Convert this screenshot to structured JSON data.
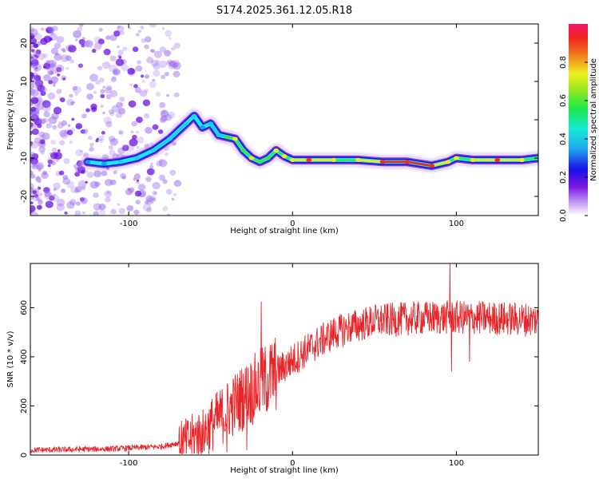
{
  "title": "S174.2025.361.12.05.R18",
  "colors": {
    "line": "#e8262a",
    "ridge_low": "#1a0fd8",
    "ridge_mid": "#18e8f0",
    "ridge_high": "#f02020",
    "noise": "#a070f0"
  },
  "chart_data": [
    {
      "type": "heatmap",
      "title": "Spectrogram",
      "xlabel": "Height of straight line (km)",
      "ylabel": "Frequency (Hz)",
      "xlim": [
        -160,
        150
      ],
      "ylim": [
        -25,
        25
      ],
      "xticks": [
        -100,
        0,
        100
      ],
      "xtick_labels": [
        "-100",
        "0",
        "100"
      ],
      "yticks": [
        -20,
        -10,
        0,
        10,
        20
      ],
      "ytick_labels": [
        "-20",
        "-10",
        "0",
        "10",
        "20"
      ],
      "ridge": [
        {
          "x": -125,
          "y": -11,
          "a": 0.2
        },
        {
          "x": -115,
          "y": -11.5,
          "a": 0.25
        },
        {
          "x": -105,
          "y": -11,
          "a": 0.3
        },
        {
          "x": -95,
          "y": -10,
          "a": 0.3
        },
        {
          "x": -85,
          "y": -8,
          "a": 0.35
        },
        {
          "x": -75,
          "y": -5,
          "a": 0.35
        },
        {
          "x": -65,
          "y": -1,
          "a": 0.35
        },
        {
          "x": -60,
          "y": 1,
          "a": 0.3
        },
        {
          "x": -55,
          "y": -2,
          "a": 0.25
        },
        {
          "x": -50,
          "y": -1,
          "a": 0.35
        },
        {
          "x": -45,
          "y": -4,
          "a": 0.35
        },
        {
          "x": -40,
          "y": -4.5,
          "a": 0.5
        },
        {
          "x": -35,
          "y": -5,
          "a": 0.55
        },
        {
          "x": -30,
          "y": -8,
          "a": 0.5
        },
        {
          "x": -25,
          "y": -10,
          "a": 0.55
        },
        {
          "x": -20,
          "y": -11,
          "a": 0.5
        },
        {
          "x": -15,
          "y": -10,
          "a": 0.5
        },
        {
          "x": -10,
          "y": -8,
          "a": 0.55
        },
        {
          "x": -5,
          "y": -9.5,
          "a": 0.55
        },
        {
          "x": 0,
          "y": -10.5,
          "a": 0.55
        },
        {
          "x": 10,
          "y": -10.5,
          "a": 0.7
        },
        {
          "x": 25,
          "y": -10.5,
          "a": 0.55
        },
        {
          "x": 40,
          "y": -10.5,
          "a": 0.6
        },
        {
          "x": 55,
          "y": -11,
          "a": 0.75
        },
        {
          "x": 70,
          "y": -11,
          "a": 0.7
        },
        {
          "x": 85,
          "y": -12,
          "a": 0.75
        },
        {
          "x": 95,
          "y": -11,
          "a": 0.55
        },
        {
          "x": 100,
          "y": -10,
          "a": 0.55
        },
        {
          "x": 110,
          "y": -10.5,
          "a": 0.6
        },
        {
          "x": 125,
          "y": -10.5,
          "a": 0.65
        },
        {
          "x": 140,
          "y": -10.5,
          "a": 0.6
        },
        {
          "x": 150,
          "y": -10,
          "a": 0.5
        }
      ],
      "noise_region": {
        "x_from": -160,
        "x_to": -70,
        "y_from": -25,
        "y_to": 25
      }
    },
    {
      "type": "colorbar",
      "label": "Normalized spectral amplitude",
      "range": [
        0,
        1
      ],
      "ticks": [
        0,
        0.2,
        0.4,
        0.6,
        0.8
      ],
      "tick_labels": [
        "0.0",
        "0.2",
        "0.4",
        "0.6",
        "0.8"
      ]
    },
    {
      "type": "line",
      "title": "SNR",
      "xlabel": "Height of straight line (km)",
      "ylabel": "SNR (10 * v/v)",
      "xlim": [
        -160,
        150
      ],
      "ylim": [
        0,
        780
      ],
      "xticks": [
        -100,
        0,
        100
      ],
      "xtick_labels": [
        "-100",
        "0",
        "100"
      ],
      "yticks": [
        0,
        200,
        400,
        600
      ],
      "ytick_labels": [
        "0",
        "200",
        "400",
        "600"
      ],
      "trend": [
        {
          "x": -160,
          "y": 20
        },
        {
          "x": -110,
          "y": 25
        },
        {
          "x": -80,
          "y": 35
        },
        {
          "x": -65,
          "y": 55
        },
        {
          "x": -55,
          "y": 90
        },
        {
          "x": -45,
          "y": 150
        },
        {
          "x": -35,
          "y": 210
        },
        {
          "x": -25,
          "y": 260
        },
        {
          "x": -15,
          "y": 310
        },
        {
          "x": -5,
          "y": 360
        },
        {
          "x": 5,
          "y": 410
        },
        {
          "x": 15,
          "y": 455
        },
        {
          "x": 25,
          "y": 495
        },
        {
          "x": 35,
          "y": 520
        },
        {
          "x": 50,
          "y": 545
        },
        {
          "x": 70,
          "y": 555
        },
        {
          "x": 90,
          "y": 560
        },
        {
          "x": 110,
          "y": 560
        },
        {
          "x": 130,
          "y": 555
        },
        {
          "x": 150,
          "y": 550
        }
      ],
      "spikes": [
        {
          "x": -19,
          "y": 625
        },
        {
          "x": 96,
          "y": 780
        },
        {
          "x": 97,
          "y": 340
        },
        {
          "x": 108,
          "y": 380
        },
        {
          "x": -28,
          "y": 20
        },
        {
          "x": -40,
          "y": 10
        }
      ]
    }
  ]
}
